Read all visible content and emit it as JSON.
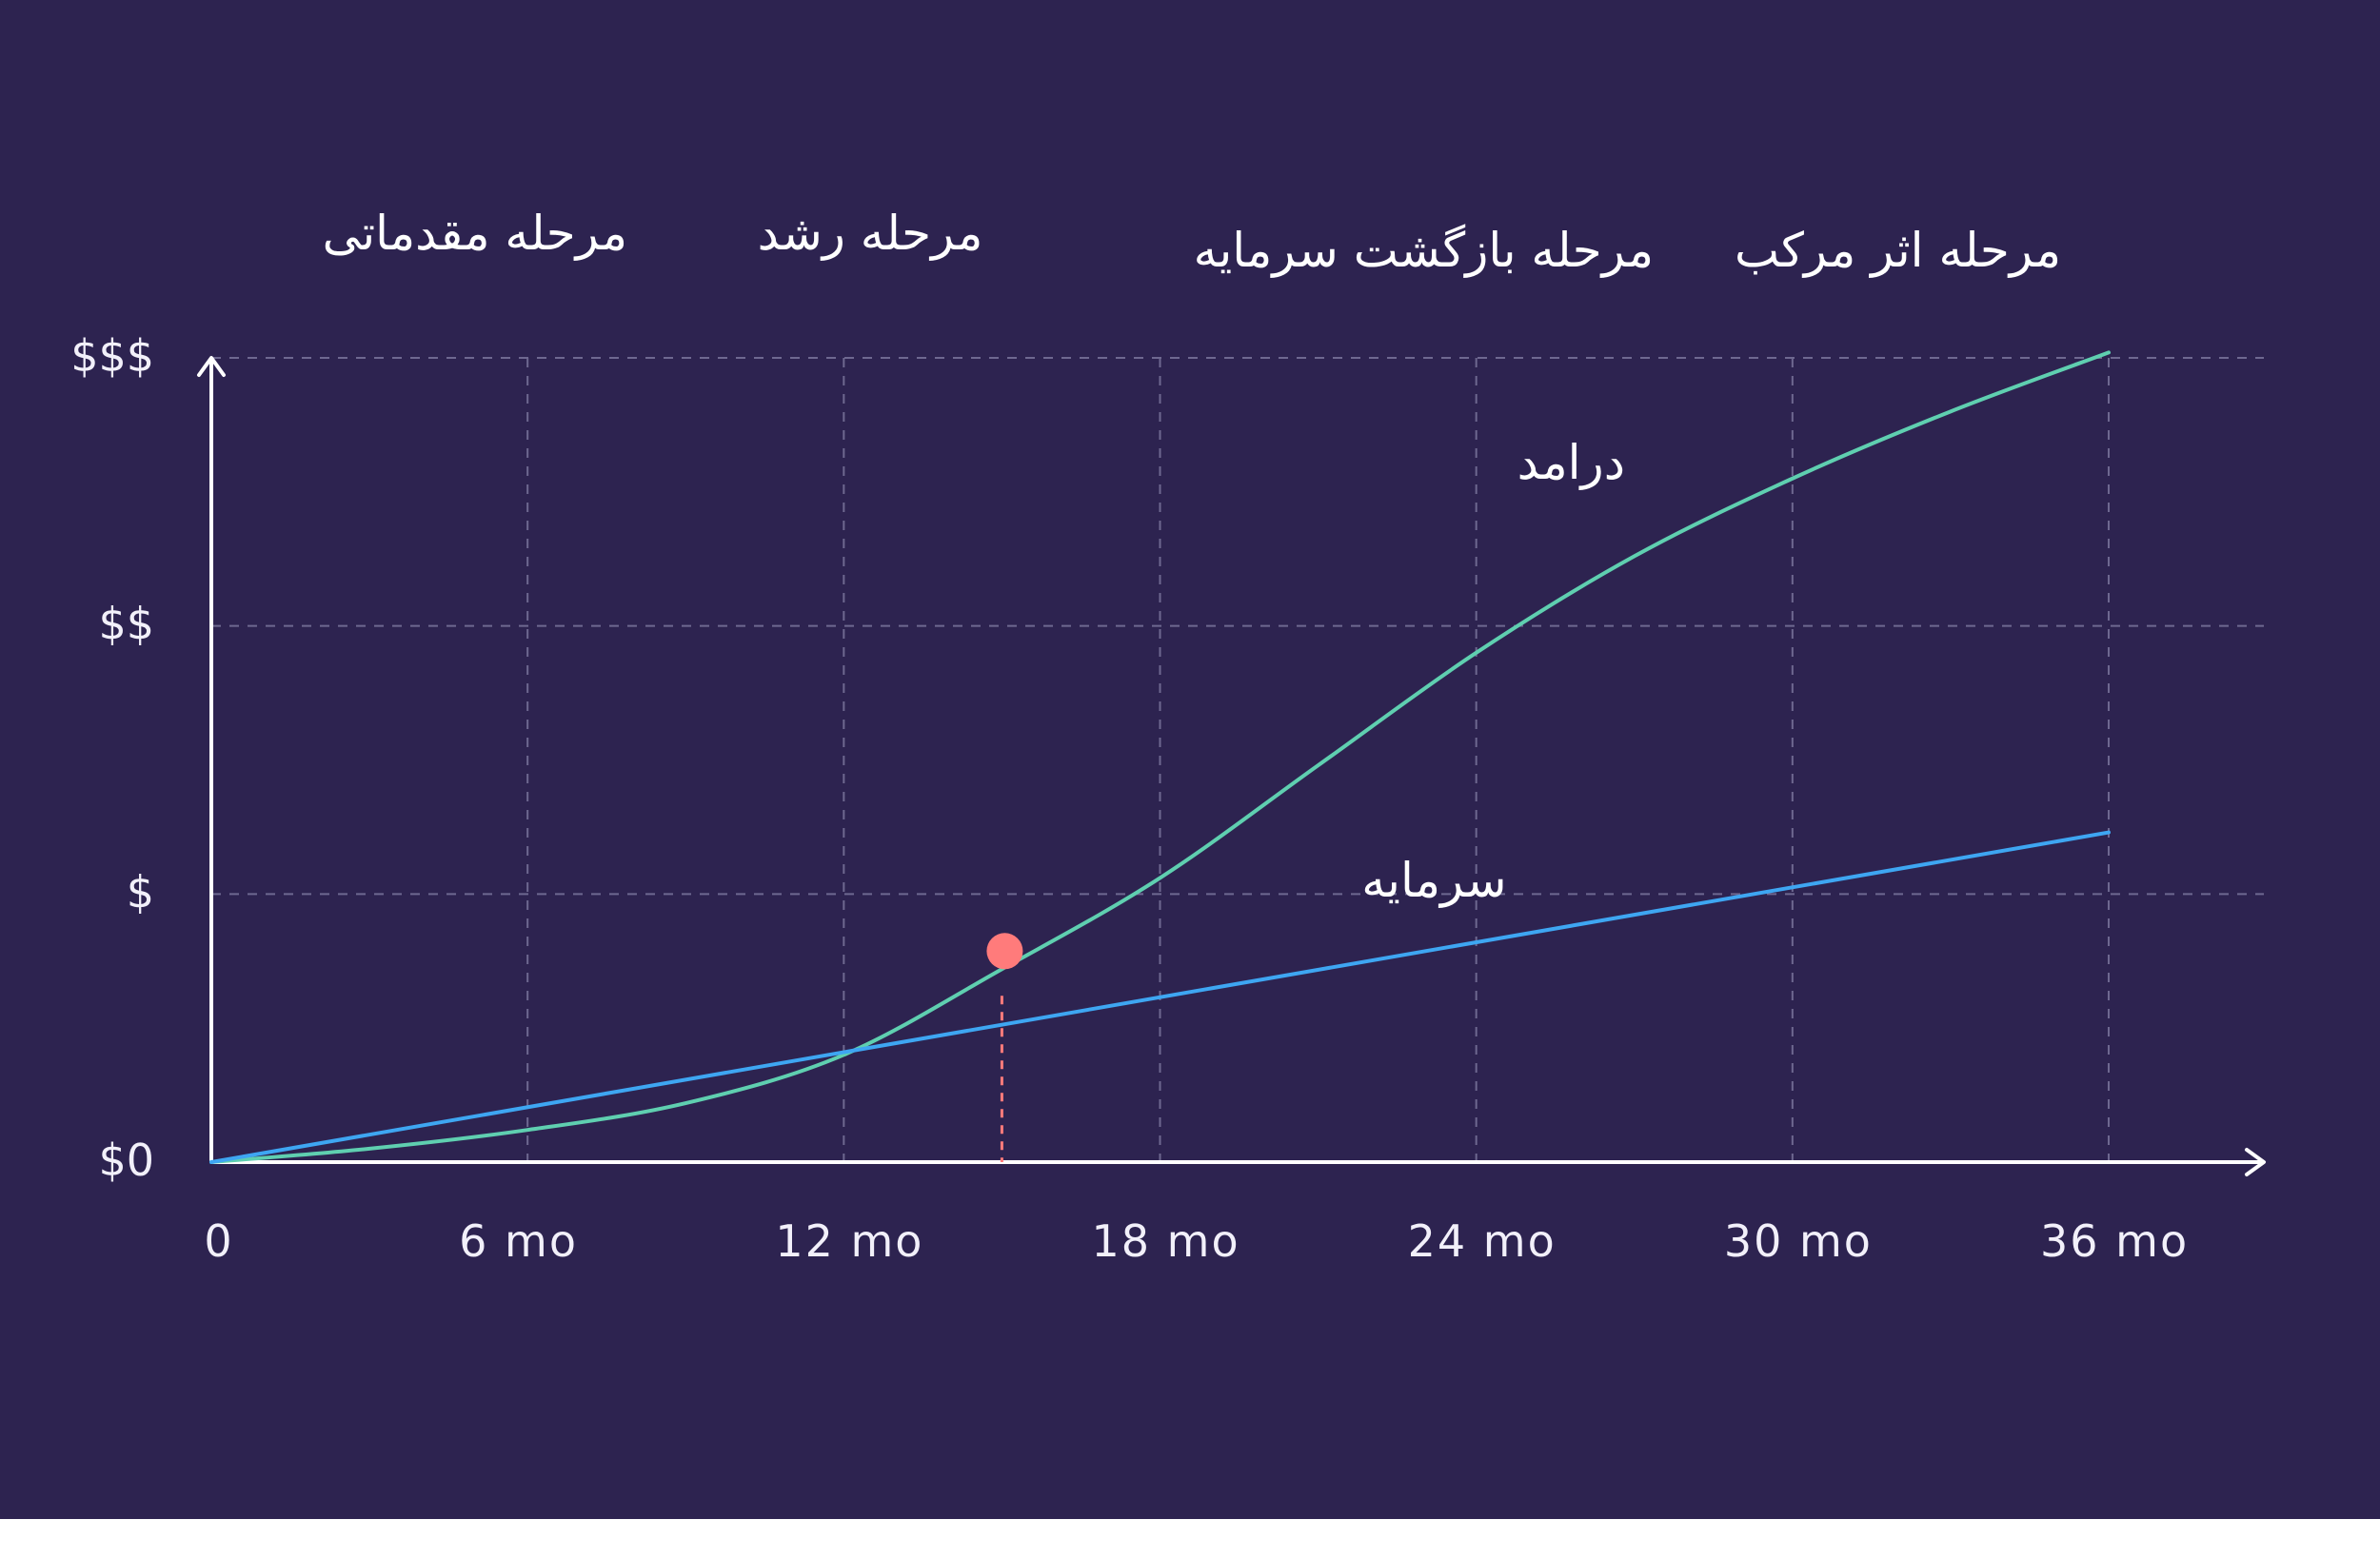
{
  "chart_data": {
    "type": "line",
    "title": "",
    "xlabel": "",
    "ylabel": "",
    "x": [
      0,
      6,
      12,
      18,
      24,
      30,
      36
    ],
    "x_tick_labels": [
      "0",
      "6 mo",
      "12 mo",
      "18 mo",
      "24 mo",
      "30 mo",
      "36 mo"
    ],
    "xlim": [
      0,
      36
    ],
    "y_ticks": [
      0,
      1,
      2,
      3
    ],
    "y_tick_labels": [
      "$0",
      "$",
      "$$",
      "$$$"
    ],
    "ylim": [
      0,
      3
    ],
    "grid": true,
    "phases": [
      {
        "label": "مرحله مقدماتی",
        "x": 5
      },
      {
        "label": "مرحله رشد",
        "x": 12.5
      },
      {
        "label": "مرحله بازگشت سرمایه",
        "x": 23
      },
      {
        "label": "مرحله اثر مرکب",
        "x": 32
      }
    ],
    "series": [
      {
        "name": "درامد",
        "color": "#5fcfb0",
        "x": [
          0,
          3,
          6,
          9,
          12,
          15,
          18,
          21,
          24,
          27,
          30,
          33,
          36
        ],
        "values": [
          0,
          0.05,
          0.12,
          0.22,
          0.4,
          0.72,
          1.06,
          1.48,
          1.9,
          2.26,
          2.55,
          2.8,
          3.02
        ]
      },
      {
        "name": "سرمایه",
        "color": "#3ea6f2",
        "x": [
          0,
          36
        ],
        "values": [
          0,
          1.23
        ]
      }
    ],
    "marker": {
      "x": 15,
      "y": 0.67,
      "color": "#ff7b7b"
    }
  }
}
